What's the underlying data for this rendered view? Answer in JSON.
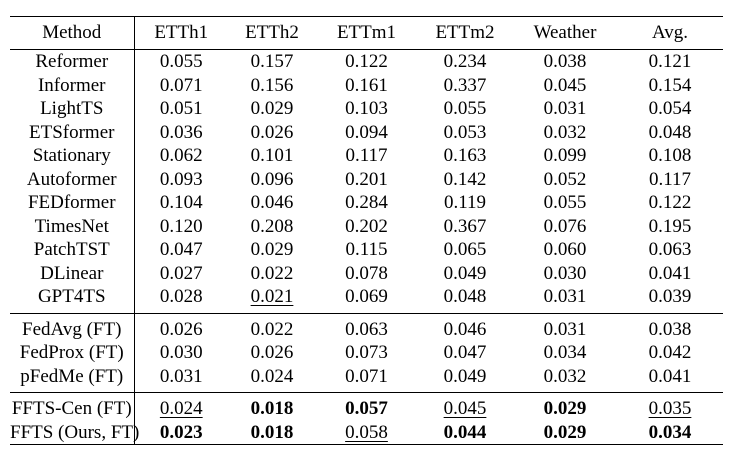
{
  "table": {
    "headers": [
      "Method",
      "ETTh1",
      "ETTh2",
      "ETTm1",
      "ETTm2",
      "Weather",
      "Avg."
    ],
    "groups": [
      [
        [
          "Reformer",
          "0.055",
          "0.157",
          "0.122",
          "0.234",
          "0.038",
          "0.121"
        ],
        [
          "Informer",
          "0.071",
          "0.156",
          "0.161",
          "0.337",
          "0.045",
          "0.154"
        ],
        [
          "LightTS",
          "0.051",
          "0.029",
          "0.103",
          "0.055",
          "0.031",
          "0.054"
        ],
        [
          "ETSformer",
          "0.036",
          "0.026",
          "0.094",
          "0.053",
          "0.032",
          "0.048"
        ],
        [
          "Stationary",
          "0.062",
          "0.101",
          "0.117",
          "0.163",
          "0.099",
          "0.108"
        ],
        [
          "Autoformer",
          "0.093",
          "0.096",
          "0.201",
          "0.142",
          "0.052",
          "0.117"
        ],
        [
          "FEDformer",
          "0.104",
          "0.046",
          "0.284",
          "0.119",
          "0.055",
          "0.122"
        ],
        [
          "TimesNet",
          "0.120",
          "0.208",
          "0.202",
          "0.367",
          "0.076",
          "0.195"
        ],
        [
          "PatchTST",
          "0.047",
          "0.029",
          "0.115",
          "0.065",
          "0.060",
          "0.063"
        ],
        [
          "DLinear",
          "0.027",
          "0.022",
          "0.078",
          "0.049",
          "0.030",
          "0.041"
        ],
        [
          "GPT4TS",
          "0.028",
          "0.021",
          "0.069",
          "0.048",
          "0.031",
          "0.039"
        ]
      ],
      [
        [
          "FedAvg (FT)",
          "0.026",
          "0.022",
          "0.063",
          "0.046",
          "0.031",
          "0.038"
        ],
        [
          "FedProx (FT)",
          "0.030",
          "0.026",
          "0.073",
          "0.047",
          "0.034",
          "0.042"
        ],
        [
          "pFedMe (FT)",
          "0.031",
          "0.024",
          "0.071",
          "0.049",
          "0.032",
          "0.041"
        ]
      ],
      [
        [
          "FFTS-Cen (FT)",
          "0.024",
          "0.018",
          "0.057",
          "0.045",
          "0.029",
          "0.035"
        ],
        [
          "FFTS (Ours, FT)",
          "0.023",
          "0.018",
          "0.058",
          "0.044",
          "0.029",
          "0.034"
        ]
      ]
    ],
    "styles": {
      "0-10-2": "ul",
      "2-0-1": "ul",
      "2-0-2": "bold",
      "2-0-3": "bold",
      "2-0-4": "ul",
      "2-0-5": "bold",
      "2-0-6": "ul",
      "2-1-1": "bold",
      "2-1-2": "bold",
      "2-1-3": "ul",
      "2-1-4": "bold",
      "2-1-5": "bold",
      "2-1-6": "bold"
    }
  }
}
